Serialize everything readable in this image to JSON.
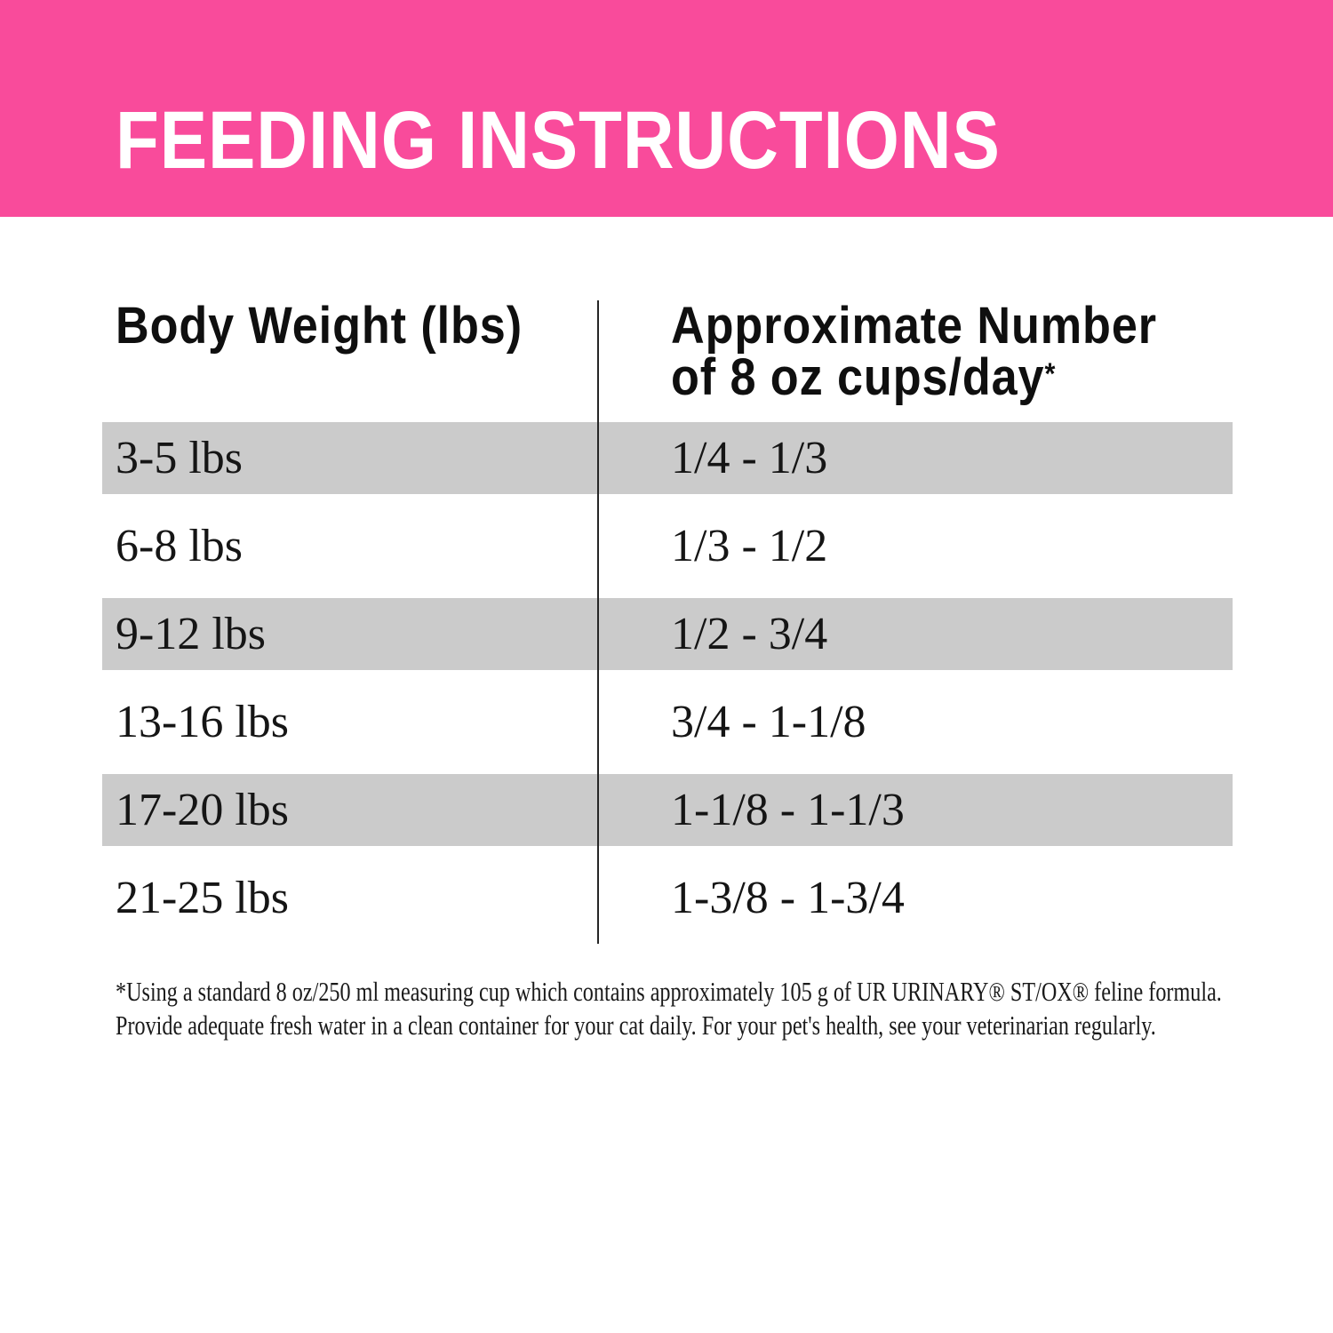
{
  "banner": {
    "title": "FEEDING INSTRUCTIONS",
    "background_color": "#F94B9B",
    "text_color": "#FFFFFF"
  },
  "table": {
    "columns": [
      {
        "label": "Body Weight (lbs)"
      },
      {
        "label_line1": "Approximate Number",
        "label_line2": "of 8 oz cups/day",
        "footnote_marker": "*"
      }
    ],
    "rows": [
      {
        "weight": "3-5 lbs",
        "cups": "1/4 - 1/3",
        "shaded": true
      },
      {
        "weight": "6-8 lbs",
        "cups": "1/3 - 1/2",
        "shaded": false
      },
      {
        "weight": "9-12 lbs",
        "cups": "1/2 - 3/4",
        "shaded": true
      },
      {
        "weight": "13-16 lbs",
        "cups": "3/4 - 1-1/8",
        "shaded": false
      },
      {
        "weight": "17-20 lbs",
        "cups": "1-1/8 - 1-1/3",
        "shaded": true
      },
      {
        "weight": "21-25 lbs",
        "cups": "1-3/8 - 1-3/4",
        "shaded": false
      }
    ],
    "shaded_row_color": "#CBCBCB"
  },
  "footnote": {
    "line1": "*Using a standard 8 oz/250 ml measuring cup which contains approximately 105 g of UR URINARY® ST/OX® feline formula.",
    "line2": "Provide adequate fresh water in a clean container for your cat daily. For your pet's health, see your veterinarian regularly."
  },
  "chart_data": {
    "type": "table",
    "title": "FEEDING INSTRUCTIONS",
    "columns": [
      "Body Weight (lbs)",
      "Approximate Number of 8 oz cups/day*"
    ],
    "rows": [
      [
        "3-5 lbs",
        "1/4 - 1/3"
      ],
      [
        "6-8 lbs",
        "1/3 - 1/2"
      ],
      [
        "9-12 lbs",
        "1/2 - 3/4"
      ],
      [
        "13-16 lbs",
        "3/4 - 1-1/8"
      ],
      [
        "17-20 lbs",
        "1-1/8 - 1-1/3"
      ],
      [
        "21-25 lbs",
        "1-3/8 - 1-3/4"
      ]
    ]
  }
}
